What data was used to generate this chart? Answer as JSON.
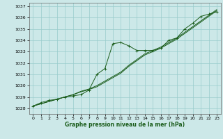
{
  "bg_color": "#cce8e8",
  "grid_color": "#99cccc",
  "line_color": "#1a5c1a",
  "xlabel": "Graphe pression niveau de la mer (hPa)",
  "xlim": [
    -0.5,
    23.5
  ],
  "ylim": [
    1027.5,
    1037.3
  ],
  "x_ticks": [
    0,
    1,
    2,
    3,
    4,
    5,
    6,
    7,
    8,
    9,
    10,
    11,
    12,
    13,
    14,
    15,
    16,
    17,
    18,
    19,
    20,
    21,
    22,
    23
  ],
  "y_ticks": [
    1028,
    1029,
    1030,
    1031,
    1032,
    1033,
    1034,
    1035,
    1036,
    1037
  ],
  "series_main": [
    1028.2,
    1028.5,
    1028.7,
    1028.8,
    1029.0,
    1029.1,
    1029.2,
    1029.6,
    1031.0,
    1031.5,
    1033.7,
    1033.8,
    1033.5,
    1033.1,
    1033.1,
    1033.1,
    1033.3,
    1034.0,
    1034.2,
    1035.0,
    1035.5,
    1036.1,
    1036.3,
    1036.5
  ],
  "series_trend1": [
    1028.2,
    1028.4,
    1028.6,
    1028.8,
    1029.0,
    1029.2,
    1029.5,
    1029.7,
    1030.0,
    1030.4,
    1030.8,
    1031.2,
    1031.8,
    1032.3,
    1032.8,
    1033.1,
    1033.4,
    1033.8,
    1034.2,
    1034.7,
    1035.2,
    1035.7,
    1036.2,
    1036.7
  ],
  "series_trend2": [
    1028.2,
    1028.4,
    1028.6,
    1028.8,
    1029.0,
    1029.2,
    1029.45,
    1029.65,
    1029.9,
    1030.3,
    1030.7,
    1031.1,
    1031.7,
    1032.2,
    1032.7,
    1033.0,
    1033.3,
    1033.7,
    1034.1,
    1034.6,
    1035.1,
    1035.6,
    1036.1,
    1036.6
  ]
}
